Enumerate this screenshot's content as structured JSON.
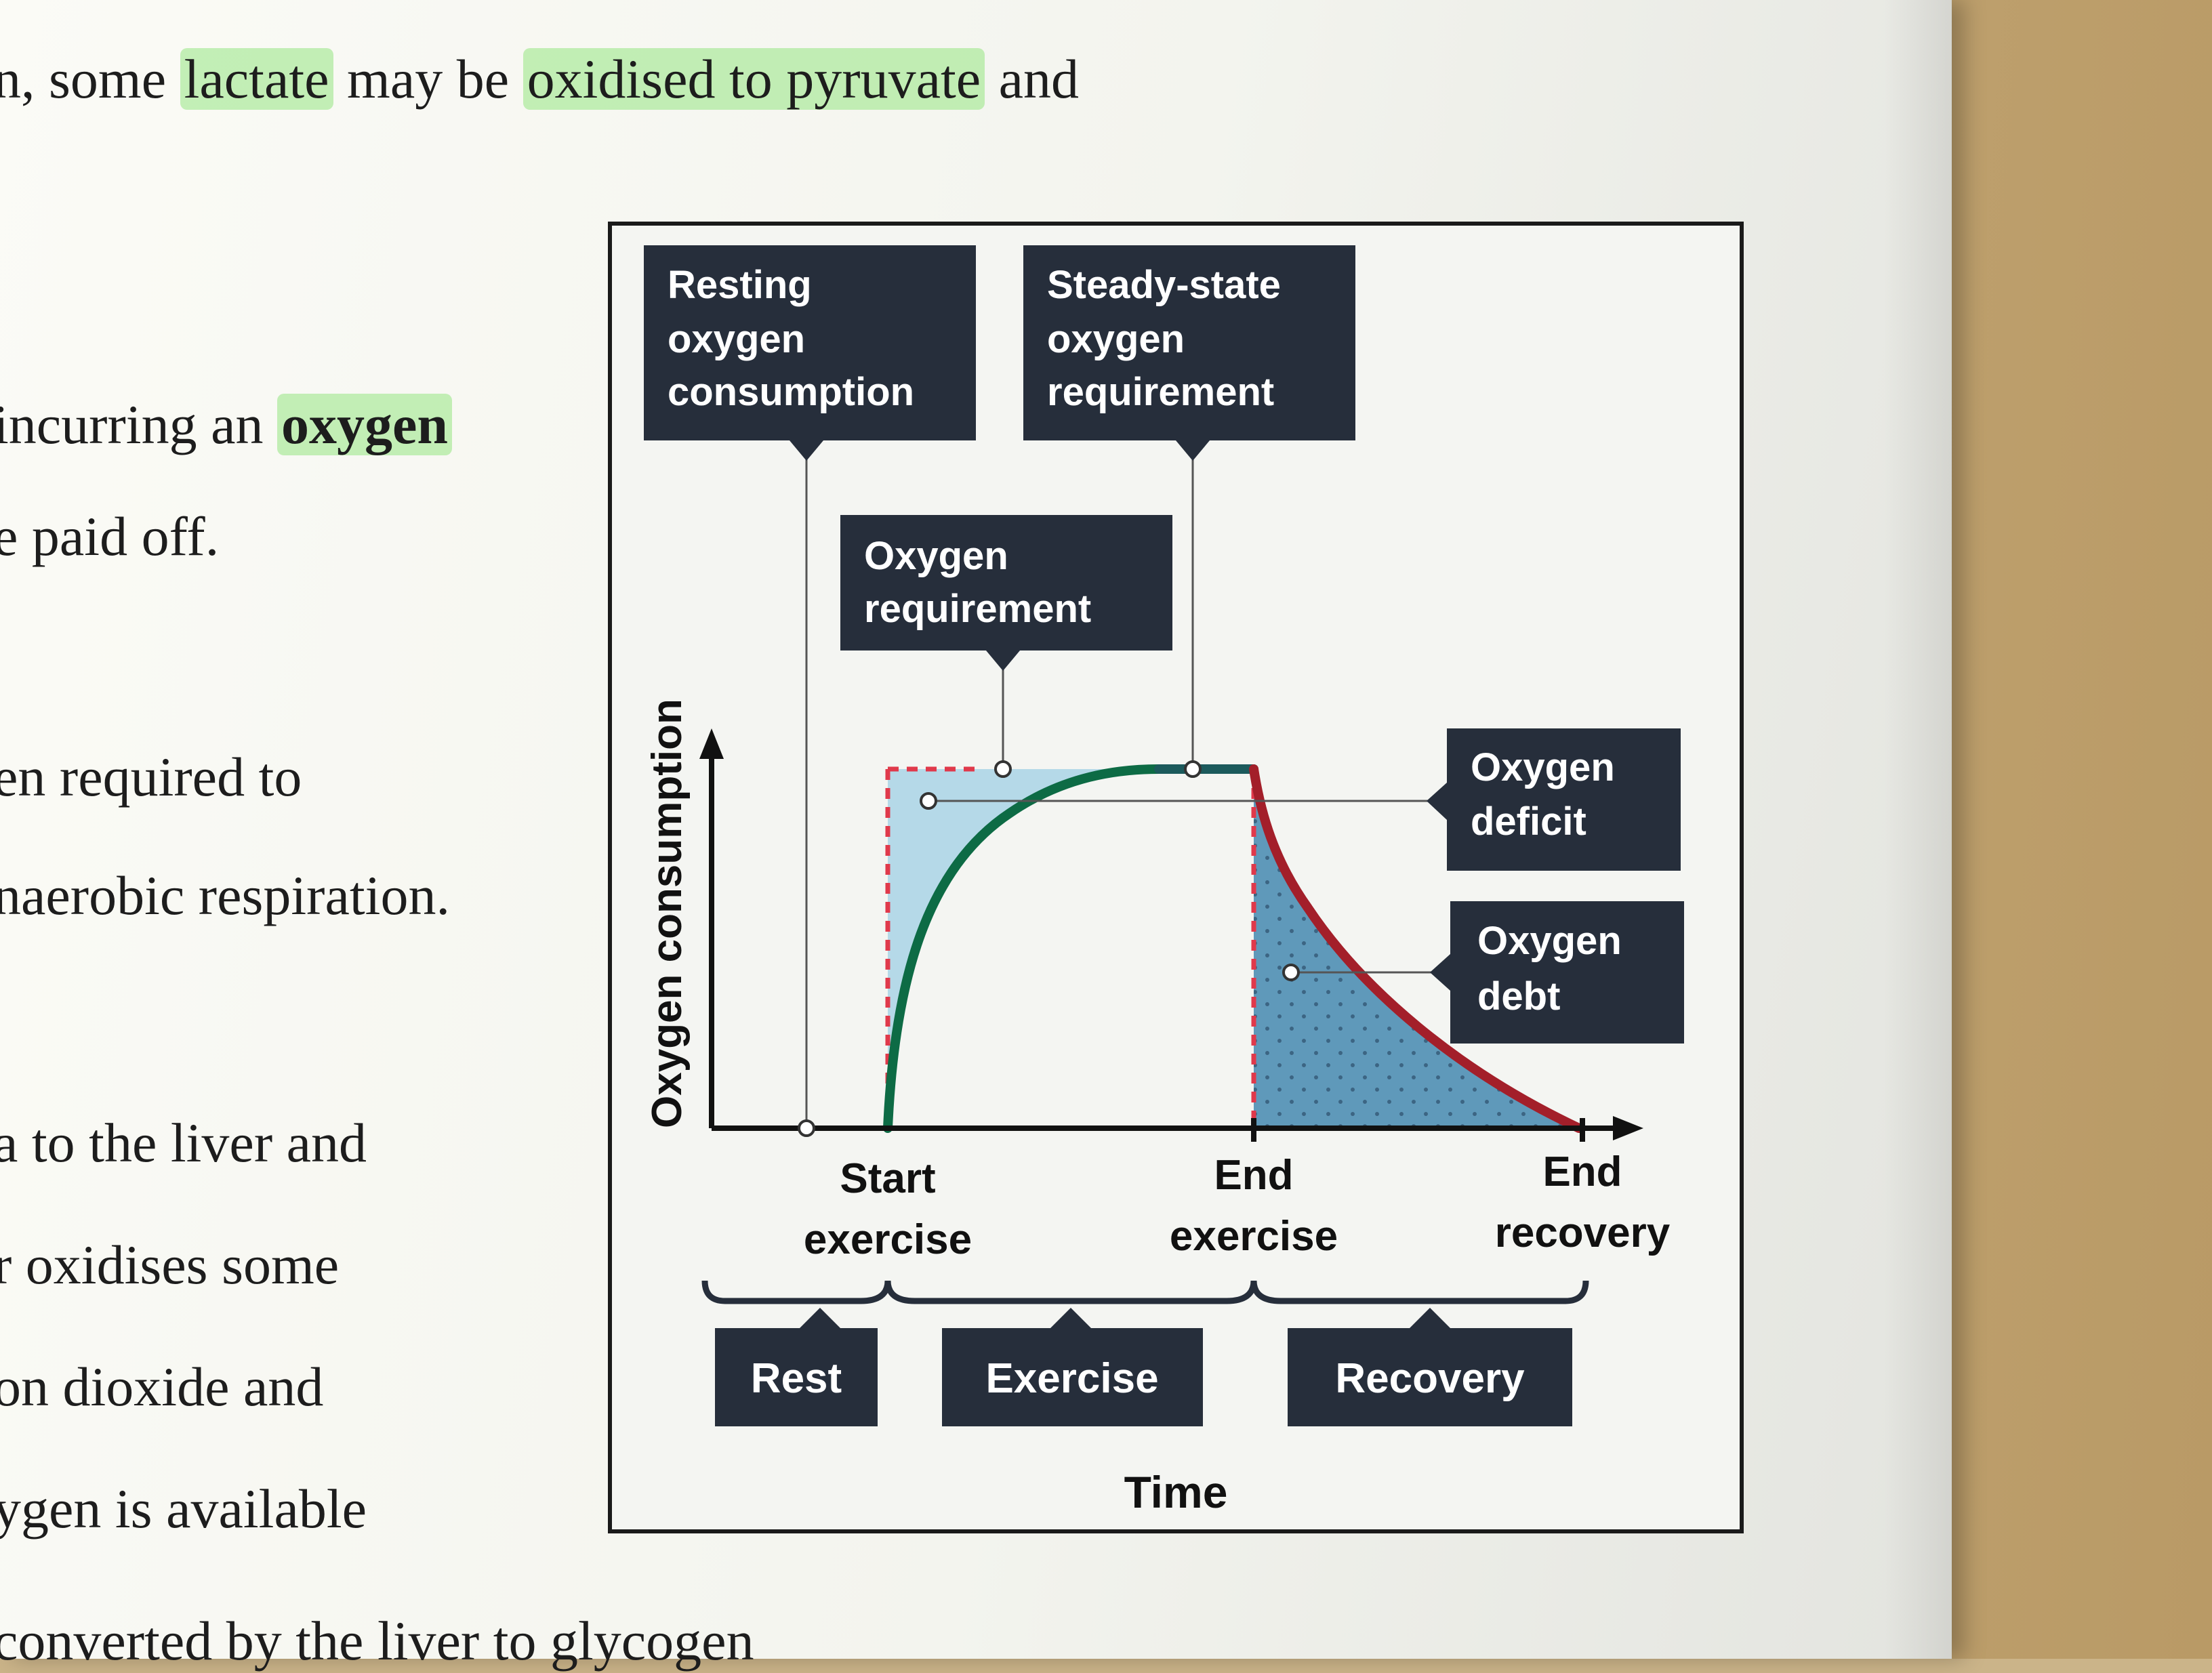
{
  "body_text": {
    "line1": {
      "a": "n, some ",
      "b": "lactate",
      "c": " may be ",
      "d": "oxidised to pyruvate",
      "e": " and"
    },
    "line2": {
      "a": "incurring an ",
      "b": "oxygen"
    },
    "line3": "e paid off.",
    "line4": "en required to",
    "line5": "naerobic respiration.",
    "line6": "a to the liver and",
    "line7": "r oxidises some",
    "line8": "on dioxide and",
    "line9": "ygen is available",
    "line10": "converted by the liver to glycogen"
  },
  "figure": {
    "callouts": {
      "resting": [
        "Resting",
        "oxygen",
        "consumption"
      ],
      "steady_state": [
        "Steady-state",
        "oxygen",
        "requirement"
      ],
      "requirement": [
        "Oxygen",
        "requirement"
      ],
      "deficit": [
        "Oxygen",
        "deficit"
      ],
      "debt": [
        "Oxygen",
        "debt"
      ]
    },
    "y_axis_label": "Oxygen consumption",
    "x_axis_label": "Time",
    "markers": {
      "start": [
        "Start",
        "exercise"
      ],
      "end": [
        "End",
        "exercise"
      ],
      "recovery_end": [
        "End",
        "recovery"
      ]
    },
    "phases": {
      "rest": "Rest",
      "exercise": "Exercise",
      "recovery": "Recovery"
    },
    "colors": {
      "label_box": "#262e3b",
      "uptake_curve": "#0d6b45",
      "recovery_curve": "#a31f2a",
      "deficit_fill": "#a9d3e6",
      "debt_fill": "#4f8fb4",
      "requirement_dash": "#e0394b"
    }
  }
}
